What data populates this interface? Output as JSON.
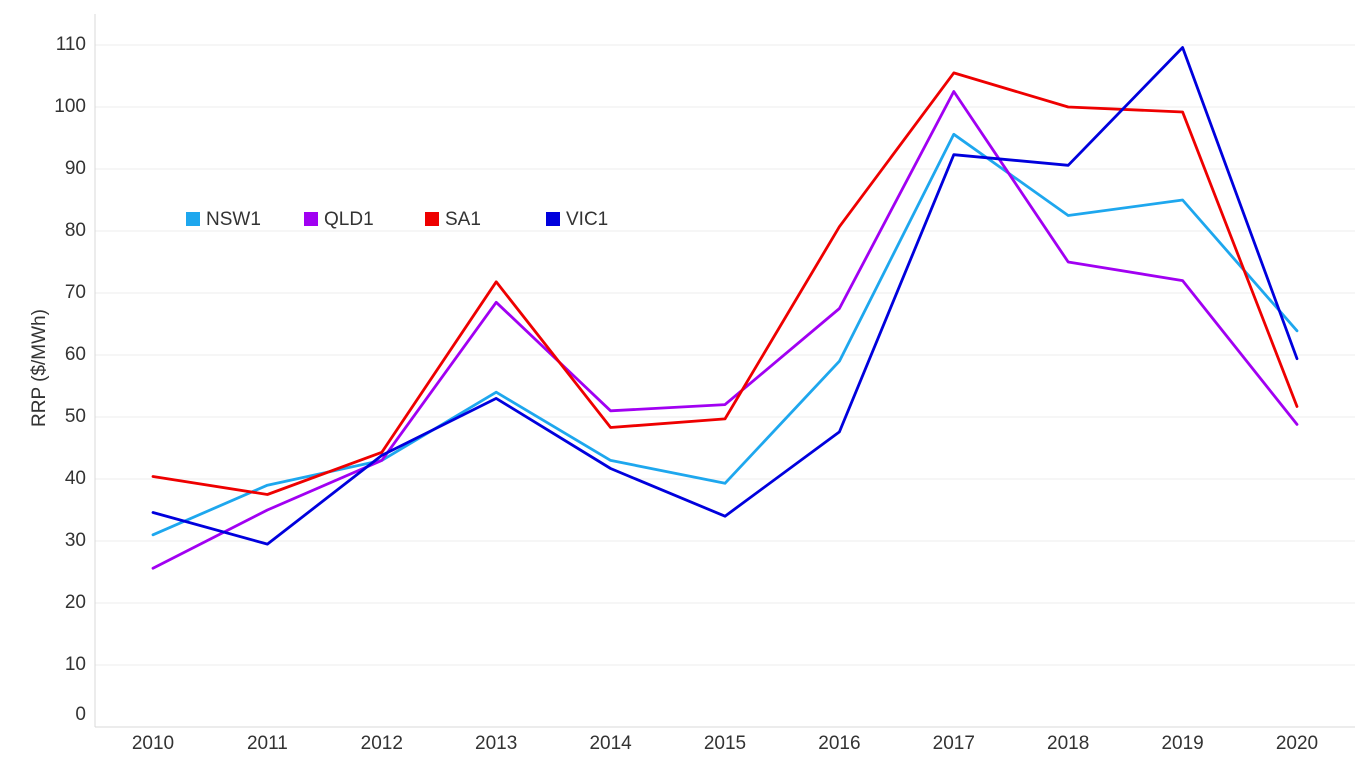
{
  "chart_data": {
    "type": "line",
    "title": "",
    "xlabel": "",
    "ylabel": "RRP ($/MWh)",
    "x": [
      "2010",
      "2011",
      "2012",
      "2013",
      "2014",
      "2015",
      "2016",
      "2017",
      "2018",
      "2019",
      "2020"
    ],
    "ylim": [
      0,
      110
    ],
    "yticks": [
      0,
      10,
      20,
      30,
      40,
      50,
      60,
      70,
      80,
      90,
      100,
      110
    ],
    "grid": true,
    "legend_position": "top-left",
    "series": [
      {
        "name": "NSW1",
        "color": "#1ea7ee",
        "values": [
          31,
          39,
          43,
          54,
          43,
          39.3,
          59,
          95.6,
          82.5,
          85,
          63.9
        ]
      },
      {
        "name": "QLD1",
        "color": "#a100f2",
        "values": [
          25.6,
          35,
          43,
          68.5,
          51,
          52,
          67.5,
          102.5,
          75,
          72,
          48.8
        ]
      },
      {
        "name": "SA1",
        "color": "#ee0000",
        "values": [
          40.4,
          37.5,
          44.3,
          71.8,
          48.3,
          49.7,
          80.7,
          105.5,
          100,
          99.2,
          51.7
        ]
      },
      {
        "name": "VIC1",
        "color": "#0000dd",
        "values": [
          34.6,
          29.5,
          43.8,
          53,
          41.7,
          34,
          47.6,
          92.3,
          90.6,
          109.6,
          59.4
        ]
      }
    ]
  }
}
